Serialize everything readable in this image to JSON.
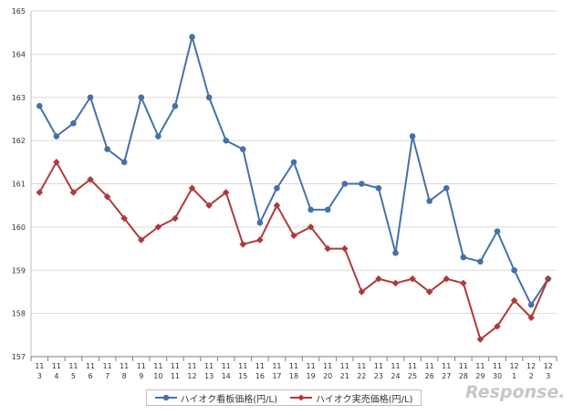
{
  "chart_data": {
    "type": "line",
    "categories": [
      [
        "11",
        "3"
      ],
      [
        "11",
        "4"
      ],
      [
        "11",
        "5"
      ],
      [
        "11",
        "6"
      ],
      [
        "11",
        "7"
      ],
      [
        "11",
        "8"
      ],
      [
        "11",
        "9"
      ],
      [
        "11",
        "10"
      ],
      [
        "11",
        "11"
      ],
      [
        "11",
        "12"
      ],
      [
        "11",
        "13"
      ],
      [
        "11",
        "14"
      ],
      [
        "11",
        "15"
      ],
      [
        "11",
        "16"
      ],
      [
        "11",
        "17"
      ],
      [
        "11",
        "18"
      ],
      [
        "11",
        "19"
      ],
      [
        "11",
        "20"
      ],
      [
        "11",
        "21"
      ],
      [
        "11",
        "22"
      ],
      [
        "11",
        "23"
      ],
      [
        "11",
        "24"
      ],
      [
        "11",
        "25"
      ],
      [
        "11",
        "26"
      ],
      [
        "11",
        "27"
      ],
      [
        "11",
        "28"
      ],
      [
        "11",
        "29"
      ],
      [
        "11",
        "30"
      ],
      [
        "12",
        "1"
      ],
      [
        "12",
        "2"
      ],
      [
        "12",
        "3"
      ]
    ],
    "series": [
      {
        "name": "ハイオク看板価格(円/L)",
        "color": "#4472a8",
        "marker": "circle",
        "values": [
          162.8,
          162.1,
          162.4,
          163.0,
          161.8,
          161.5,
          163.0,
          162.1,
          162.8,
          164.4,
          163.0,
          162.0,
          161.8,
          160.1,
          160.9,
          161.5,
          160.4,
          160.4,
          161.0,
          161.0,
          160.9,
          159.4,
          162.1,
          160.6,
          160.9,
          159.3,
          159.2,
          159.9,
          159.0,
          158.2,
          158.8
        ]
      },
      {
        "name": "ハイオク実売価格(円/L)",
        "color": "#b03a3a",
        "marker": "diamond",
        "values": [
          160.8,
          161.5,
          160.8,
          161.1,
          160.7,
          160.2,
          159.7,
          160.0,
          160.2,
          160.9,
          160.5,
          160.8,
          159.6,
          159.7,
          160.5,
          159.8,
          160.0,
          159.5,
          159.5,
          158.5,
          158.8,
          158.7,
          158.8,
          158.5,
          158.8,
          158.7,
          157.4,
          157.7,
          158.3,
          157.9,
          158.8
        ]
      }
    ],
    "yticks": [
      157,
      158,
      159,
      160,
      161,
      162,
      163,
      164,
      165
    ],
    "ylim": [
      157,
      165
    ],
    "grid": true,
    "legend_position": "bottom",
    "title": "",
    "xlabel": "",
    "ylabel": ""
  },
  "watermark": "Response."
}
